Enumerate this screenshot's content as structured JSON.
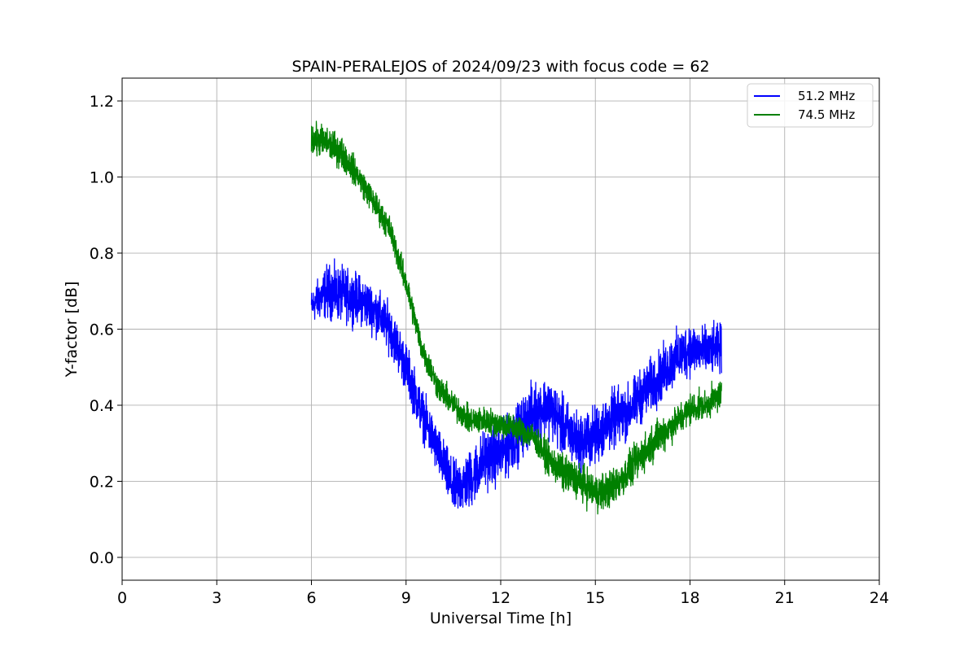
{
  "chart_data": {
    "type": "line",
    "title": "SPAIN-PERALEJOS of 2024/09/23 with focus code = 62",
    "xlabel": "Universal Time [h]",
    "ylabel": "Y-factor [dB]",
    "xlim": [
      0,
      24
    ],
    "ylim": [
      -0.06,
      1.26
    ],
    "x_ticks": [
      0,
      3,
      6,
      9,
      12,
      15,
      18,
      21,
      24
    ],
    "x_tick_labels": [
      "0",
      "3",
      "6",
      "9",
      "12",
      "15",
      "18",
      "21",
      "24"
    ],
    "y_ticks": [
      0.0,
      0.2,
      0.4,
      0.6,
      0.8,
      1.0,
      1.2
    ],
    "y_tick_labels": [
      "0.0",
      "0.2",
      "0.4",
      "0.6",
      "0.8",
      "1.0",
      "1.2"
    ],
    "grid": true,
    "legend_position": "top-right",
    "series": [
      {
        "name": "51.2 MHz",
        "color": "#0000ff",
        "x": [
          6.0,
          6.5,
          7.0,
          7.5,
          8.0,
          8.5,
          9.0,
          9.5,
          10.0,
          10.5,
          11.0,
          11.5,
          12.0,
          12.5,
          13.0,
          13.5,
          14.0,
          14.5,
          15.0,
          15.5,
          16.0,
          16.5,
          17.0,
          17.5,
          18.0,
          18.5,
          19.0
        ],
        "y": [
          0.66,
          0.7,
          0.69,
          0.68,
          0.65,
          0.6,
          0.5,
          0.38,
          0.28,
          0.18,
          0.2,
          0.26,
          0.27,
          0.32,
          0.38,
          0.4,
          0.34,
          0.3,
          0.32,
          0.36,
          0.38,
          0.43,
          0.47,
          0.52,
          0.55,
          0.54,
          0.55
        ],
        "spread": [
          0.06,
          0.1,
          0.1,
          0.09,
          0.09,
          0.09,
          0.09,
          0.09,
          0.09,
          0.1,
          0.11,
          0.11,
          0.11,
          0.11,
          0.11,
          0.11,
          0.11,
          0.11,
          0.11,
          0.11,
          0.1,
          0.1,
          0.1,
          0.1,
          0.1,
          0.09,
          0.09
        ]
      },
      {
        "name": "74.5 MHz",
        "color": "#008000",
        "x": [
          6.0,
          6.5,
          7.0,
          7.5,
          8.0,
          8.5,
          9.0,
          9.5,
          10.0,
          10.5,
          11.0,
          11.5,
          12.0,
          12.5,
          13.0,
          13.5,
          14.0,
          14.5,
          15.0,
          15.5,
          16.0,
          16.5,
          17.0,
          17.5,
          18.0,
          18.5,
          19.0
        ],
        "y": [
          1.1,
          1.09,
          1.06,
          1.0,
          0.93,
          0.86,
          0.72,
          0.55,
          0.45,
          0.4,
          0.36,
          0.36,
          0.35,
          0.34,
          0.32,
          0.26,
          0.22,
          0.2,
          0.17,
          0.18,
          0.22,
          0.27,
          0.32,
          0.35,
          0.39,
          0.4,
          0.43
        ],
        "spread": [
          0.06,
          0.06,
          0.06,
          0.05,
          0.05,
          0.05,
          0.05,
          0.05,
          0.05,
          0.05,
          0.05,
          0.05,
          0.05,
          0.05,
          0.05,
          0.06,
          0.07,
          0.07,
          0.07,
          0.07,
          0.07,
          0.07,
          0.07,
          0.06,
          0.06,
          0.05,
          0.06
        ]
      }
    ]
  }
}
